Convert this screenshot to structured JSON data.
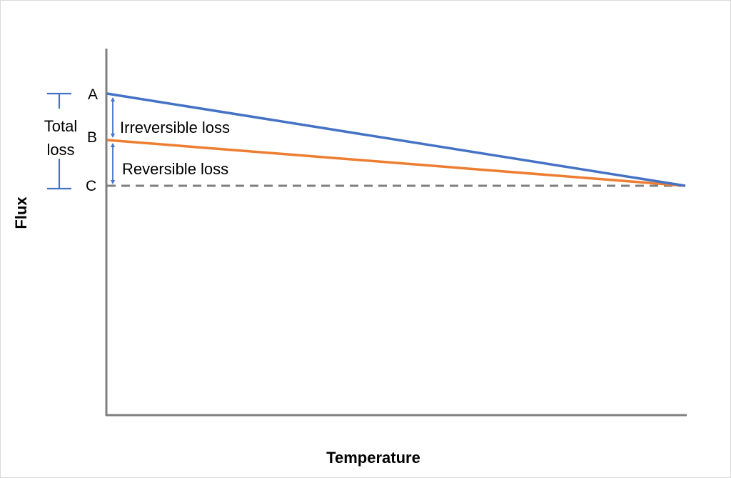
{
  "axes": {
    "x_label": "Temperature",
    "y_label": "Flux"
  },
  "points": {
    "a": "A",
    "b": "B",
    "c": "C"
  },
  "annotations": {
    "irreversible": "Irreversible loss",
    "reversible": "Reversible loss",
    "total_line1": "Total",
    "total_line2": "loss"
  },
  "colors": {
    "axis": "#7f7f7f",
    "line_a": "#4472c4",
    "line_b": "#ed7d31",
    "line_c": "#7f7f7f",
    "arrow": "#4472c4",
    "bracket": "#4472c4"
  }
}
